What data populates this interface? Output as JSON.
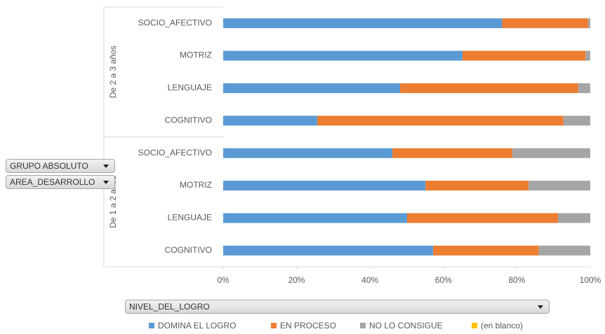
{
  "chart_data": {
    "type": "bar",
    "orientation": "horizontal",
    "stacked": "percent",
    "categories": [
      "SOCIO_AFECTIVO",
      "MOTRIZ",
      "LENGUAJE",
      "COGNITIVO",
      "SOCIO_AFECTIVO",
      "MOTRIZ",
      "LENGUAJE",
      "COGNITIVO"
    ],
    "group_labels": [
      "De 2 a 3 años",
      "De 1 a 2 años"
    ],
    "series": [
      {
        "name": "DOMINA EL LOGRO",
        "color": "#5b9bd5",
        "values": [
          76,
          65.2,
          48.2,
          25.6,
          46.1,
          55.1,
          50.1,
          57.2
        ]
      },
      {
        "name": "EN PROCESO",
        "color": "#ed7d31",
        "values": [
          23.4,
          33.5,
          48.5,
          67.1,
          32.7,
          28.1,
          41.1,
          28.8
        ]
      },
      {
        "name": "NO LO CONSIGUE",
        "color": "#a5a5a5",
        "values": [
          0.6,
          1.3,
          3.3,
          7.3,
          21.2,
          16.8,
          8.8,
          14
        ]
      },
      {
        "name": "(en blanco)",
        "color": "#ffc000",
        "values": [
          0,
          0,
          0,
          0,
          0,
          0,
          0,
          0
        ]
      }
    ],
    "xlim": [
      0,
      100
    ],
    "xticks": [
      {
        "value": 0,
        "label": "0%"
      },
      {
        "value": 20,
        "label": "20%"
      },
      {
        "value": 40,
        "label": "40%"
      },
      {
        "value": 60,
        "label": "60%"
      },
      {
        "value": 80,
        "label": "80%"
      },
      {
        "value": 100,
        "label": "100%"
      }
    ],
    "row_fields": [
      "GRUPO ABSOLUTO",
      "AREA_DESARROLLO"
    ],
    "legend_field": "NIVEL_DEL_LOGRO",
    "legend": "bottom"
  }
}
